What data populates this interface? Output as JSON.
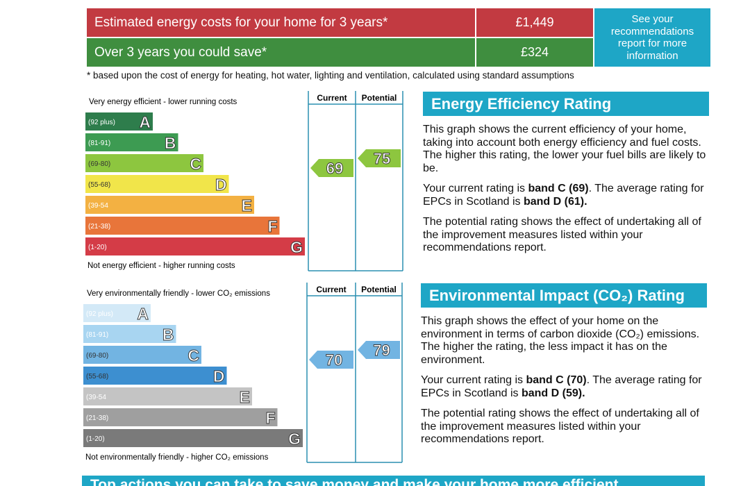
{
  "costs": {
    "rows": [
      {
        "label": "Estimated energy costs for your home for 3 years*",
        "value": "£1,449",
        "color": "#c23a41"
      },
      {
        "label": "Over 3 years you could save*",
        "value": "£324",
        "color": "#3f8e3f"
      }
    ],
    "side_note": "See your recommendations report for more information",
    "side_color": "#1ea6c6",
    "footnote": "* based upon the cost of energy for heating, hot water, lighting and ventilation, calculated using standard assumptions"
  },
  "ratings": [
    {
      "top_label": "Very energy efficient - lower running costs",
      "bottom_label": "Not energy efficient - higher running costs",
      "current_header": "Current",
      "potential_header": "Potential",
      "current": 69,
      "potential": 75,
      "bands": [
        {
          "range": "(92 plus)",
          "letter": "A",
          "color": "#2e7d4c"
        },
        {
          "range": "(81-91)",
          "letter": "B",
          "color": "#3d9b52"
        },
        {
          "range": "(69-80)",
          "letter": "C",
          "color": "#8dc63f"
        },
        {
          "range": "(55-68)",
          "letter": "D",
          "color": "#f1e54a"
        },
        {
          "range": "(39-54",
          "letter": "E",
          "color": "#f3b142"
        },
        {
          "range": "(21-38)",
          "letter": "F",
          "color": "#e8753a"
        },
        {
          "range": "(1-20)",
          "letter": "G",
          "color": "#d43c47"
        }
      ],
      "title": "Energy Efficiency Rating",
      "paragraphs": [
        [
          {
            "text": "This graph shows the current efficiency of your home, taking into account both energy efficiency and fuel costs. The higher this rating, the lower your fuel bills are likely to be."
          }
        ],
        [
          {
            "text": "Your current rating is "
          },
          {
            "text": "band C (69)",
            "bold": true
          },
          {
            "text": ". The average rating for EPCs in Scotland is "
          },
          {
            "text": "band D (61).",
            "bold": true
          }
        ],
        [
          {
            "text": "The potential rating shows the effect of undertaking all of the improvement measures listed within your recommendations report."
          }
        ]
      ]
    },
    {
      "top_label": "Very environmentally friendly - lower CO₂ emissions",
      "bottom_label": "Not environmentally friendly - higher CO₂ emissions",
      "current_header": "Current",
      "potential_header": "Potential",
      "current": 70,
      "potential": 79,
      "bands": [
        {
          "range": "(92 plus)",
          "letter": "A",
          "color": "#d3e9f7"
        },
        {
          "range": "(81-91)",
          "letter": "B",
          "color": "#a8d5f1"
        },
        {
          "range": "(69-80)",
          "letter": "C",
          "color": "#72b4e2"
        },
        {
          "range": "(55-68)",
          "letter": "D",
          "color": "#3d8fd0"
        },
        {
          "range": "(39-54",
          "letter": "E",
          "color": "#c4c4c4"
        },
        {
          "range": "(21-38)",
          "letter": "F",
          "color": "#9f9f9f"
        },
        {
          "range": "(1-20)",
          "letter": "G",
          "color": "#7a7a7a"
        }
      ],
      "title": "Environmental Impact (CO₂) Rating",
      "paragraphs": [
        [
          {
            "text": "This graph shows the effect of your home on the environment in terms of carbon dioxide (CO₂) emissions. The higher the rating, the less impact it has on the environment."
          }
        ],
        [
          {
            "text": "Your current rating is "
          },
          {
            "text": "band C (70)",
            "bold": true
          },
          {
            "text": ". The average rating for EPCs in Scotland is "
          },
          {
            "text": "band D (59).",
            "bold": true
          }
        ],
        [
          {
            "text": "The potential rating shows the effect of undertaking all of the improvement measures listed within your recommendations report."
          }
        ]
      ]
    }
  ],
  "footer_title": "Top actions you can take to save money and make your home more efficient"
}
